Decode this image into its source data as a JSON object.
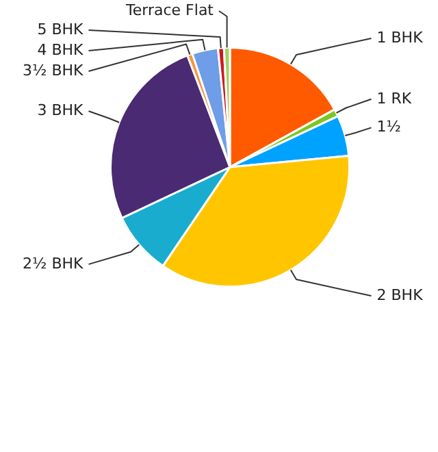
{
  "chart_data": {
    "type": "pie",
    "categories": [
      "1 BHK",
      "1 RK",
      "1½",
      "2 BHK",
      "2½ BHK",
      "3 BHK",
      "3½ BHK",
      "4 BHK",
      "5 BHK",
      "Terrace Flat"
    ],
    "values": [
      17,
      1,
      5.5,
      36,
      8.5,
      26.2,
      0.7,
      3.5,
      0.8,
      0.8
    ],
    "colors": [
      "#ff5a00",
      "#7cc623",
      "#00a2ff",
      "#ffc600",
      "#1aaccf",
      "#4a2a72",
      "#f7933b",
      "#6f9de8",
      "#d0191f",
      "#a6d06a"
    ],
    "legend": false
  }
}
